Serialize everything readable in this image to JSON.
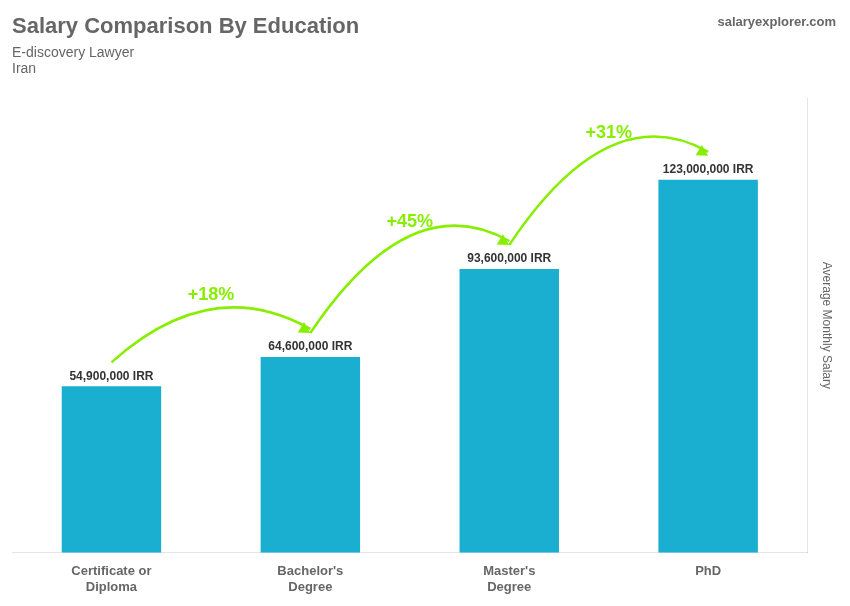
{
  "chart_data": {
    "type": "bar",
    "title": "Salary Comparison By Education",
    "subtitle": [
      "E-discovery Lawyer",
      "Iran"
    ],
    "ylabel": "Average Monthly Salary",
    "categories": [
      "Certificate or\nDiploma",
      "Bachelor's\nDegree",
      "Master's\nDegree",
      "PhD"
    ],
    "values": [
      54900000,
      64600000,
      93600000,
      123000000
    ],
    "value_labels": [
      "54,900,000 IRR",
      "64,600,000 IRR",
      "93,600,000 IRR",
      "123,000,000 IRR"
    ],
    "data_labels": true,
    "color": "#1AAFD0",
    "ylim": [
      0,
      150000000
    ],
    "grid": false,
    "tick_labels": "x",
    "annotations": [
      {
        "text": "+18%",
        "between": [
          0,
          1
        ],
        "color": "#88EE00"
      },
      {
        "text": "+45%",
        "between": [
          1,
          2
        ],
        "color": "#88EE00"
      },
      {
        "text": "+31%",
        "between": [
          2,
          3
        ],
        "color": "#88EE00"
      },
      {
        "text": "salaryexplorer.com"
      }
    ]
  }
}
